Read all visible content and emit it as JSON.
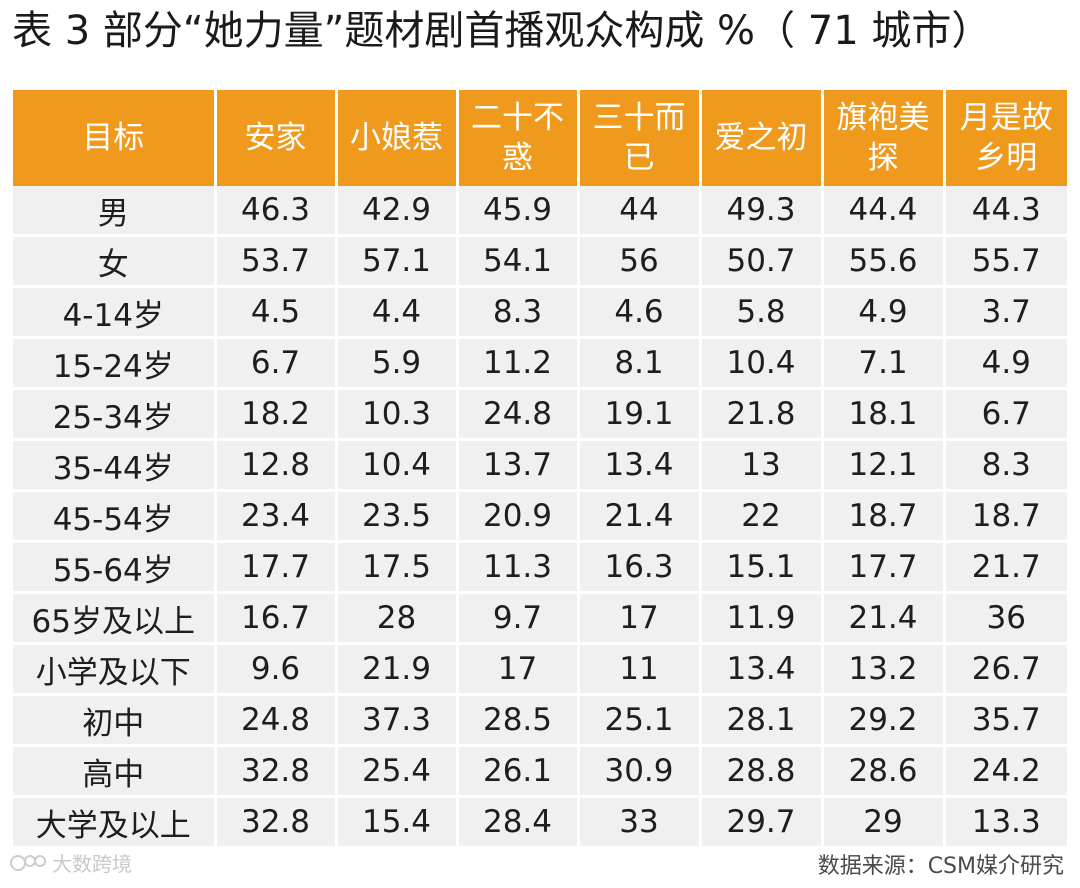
{
  "title": "表 3 部分“她力量”题材剧首播观众构成 %（ 71 城市）",
  "table": {
    "header_label": "目标",
    "columns": [
      "安家",
      "小娘惹",
      "二十不惑",
      "三十而已",
      "爱之初",
      "旗袍美探",
      "月是故乡明"
    ],
    "rows": [
      {
        "label": "男",
        "values": [
          "46.3",
          "42.9",
          "45.9",
          "44",
          "49.3",
          "44.4",
          "44.3"
        ]
      },
      {
        "label": "女",
        "values": [
          "53.7",
          "57.1",
          "54.1",
          "56",
          "50.7",
          "55.6",
          "55.7"
        ]
      },
      {
        "label": "4-14岁",
        "values": [
          "4.5",
          "4.4",
          "8.3",
          "4.6",
          "5.8",
          "4.9",
          "3.7"
        ]
      },
      {
        "label": "15-24岁",
        "values": [
          "6.7",
          "5.9",
          "11.2",
          "8.1",
          "10.4",
          "7.1",
          "4.9"
        ]
      },
      {
        "label": "25-34岁",
        "values": [
          "18.2",
          "10.3",
          "24.8",
          "19.1",
          "21.8",
          "18.1",
          "6.7"
        ]
      },
      {
        "label": "35-44岁",
        "values": [
          "12.8",
          "10.4",
          "13.7",
          "13.4",
          "13",
          "12.1",
          "8.3"
        ]
      },
      {
        "label": "45-54岁",
        "values": [
          "23.4",
          "23.5",
          "20.9",
          "21.4",
          "22",
          "18.7",
          "18.7"
        ]
      },
      {
        "label": "55-64岁",
        "values": [
          "17.7",
          "17.5",
          "11.3",
          "16.3",
          "15.1",
          "17.7",
          "21.7"
        ]
      },
      {
        "label": "65岁及以上",
        "values": [
          "16.7",
          "28",
          "9.7",
          "17",
          "11.9",
          "21.4",
          "36"
        ]
      },
      {
        "label": "小学及以下",
        "values": [
          "9.6",
          "21.9",
          "17",
          "11",
          "13.4",
          "13.2",
          "26.7"
        ]
      },
      {
        "label": "初中",
        "values": [
          "24.8",
          "37.3",
          "28.5",
          "25.1",
          "28.1",
          "29.2",
          "35.7"
        ]
      },
      {
        "label": "高中",
        "values": [
          "32.8",
          "25.4",
          "26.1",
          "30.9",
          "28.8",
          "28.6",
          "24.2"
        ]
      },
      {
        "label": "大学及以上",
        "values": [
          "32.8",
          "15.4",
          "28.4",
          "33",
          "29.7",
          "29",
          "13.3"
        ]
      }
    ]
  },
  "footer": {
    "logo_text": "大数跨境",
    "source": "数据来源：CSM媒介研究"
  },
  "colors": {
    "header_bg": "#ef9a1c",
    "row_bg": "#f0f0f0"
  }
}
